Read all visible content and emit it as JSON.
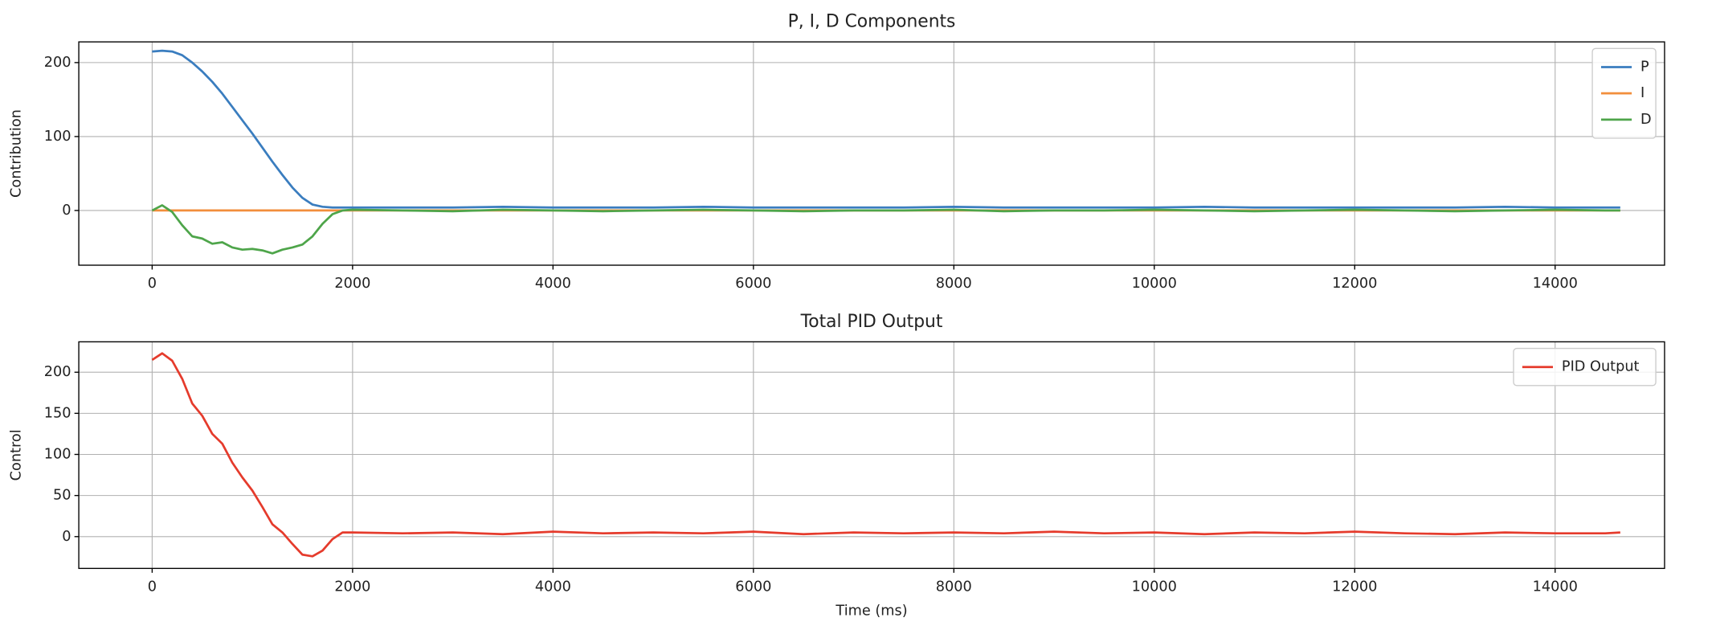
{
  "chart_data": [
    {
      "type": "line",
      "title": "P, I, D Components",
      "ylabel": "Contribution",
      "x": [
        0,
        100,
        200,
        300,
        400,
        500,
        600,
        700,
        800,
        900,
        1000,
        1100,
        1200,
        1300,
        1400,
        1500,
        1600,
        1700,
        1800,
        1900,
        2000,
        2500,
        3000,
        3500,
        4000,
        4500,
        5000,
        5500,
        6000,
        6500,
        7000,
        7500,
        8000,
        8500,
        9000,
        9500,
        10000,
        10500,
        11000,
        11500,
        12000,
        12500,
        13000,
        13500,
        14000,
        14500,
        14650
      ],
      "series": [
        {
          "name": "P",
          "color": "#3a7dbf",
          "values": [
            215,
            216,
            215,
            210,
            200,
            188,
            174,
            158,
            140,
            122,
            104,
            85,
            66,
            48,
            31,
            17,
            8,
            5,
            4,
            4,
            4,
            4,
            4,
            5,
            4,
            4,
            4,
            5,
            4,
            4,
            4,
            4,
            5,
            4,
            4,
            4,
            4,
            5,
            4,
            4,
            4,
            4,
            4,
            5,
            4,
            4,
            4
          ]
        },
        {
          "name": "I",
          "color": "#f28e3c",
          "values": [
            0,
            0,
            0,
            0,
            0,
            0,
            0,
            0,
            0,
            0,
            0,
            0,
            0,
            0,
            0,
            0,
            0,
            0,
            0,
            0,
            0,
            0,
            0,
            0,
            0,
            0,
            0,
            0,
            0,
            0,
            0,
            0,
            0,
            0,
            0,
            0,
            0,
            0,
            0,
            0,
            0,
            0,
            0,
            0,
            0,
            0,
            0
          ]
        },
        {
          "name": "D",
          "color": "#4ea54a",
          "values": [
            0,
            7,
            -2,
            -20,
            -35,
            -38,
            -45,
            -43,
            -50,
            -53,
            -52,
            -54,
            -58,
            -53,
            -50,
            -46,
            -35,
            -18,
            -5,
            0,
            1,
            0,
            -1,
            1,
            0,
            -1,
            0,
            1,
            0,
            -1,
            0,
            0,
            1,
            -1,
            0,
            0,
            1,
            0,
            -1,
            0,
            1,
            0,
            -1,
            0,
            1,
            0,
            0
          ]
        }
      ],
      "xlim": [
        -732,
        15092
      ],
      "ylim": [
        -74,
        228
      ],
      "xticks": [
        0,
        2000,
        4000,
        6000,
        8000,
        10000,
        12000,
        14000
      ],
      "yticks": [
        0,
        100,
        200
      ],
      "grid": true,
      "legend": "upper right"
    },
    {
      "type": "line",
      "title": "Total PID Output",
      "ylabel": "Control",
      "xlabel": "Time (ms)",
      "x": [
        0,
        100,
        200,
        300,
        400,
        500,
        600,
        700,
        800,
        900,
        1000,
        1100,
        1200,
        1300,
        1400,
        1500,
        1600,
        1700,
        1800,
        1900,
        2000,
        2500,
        3000,
        3500,
        4000,
        4500,
        5000,
        5500,
        6000,
        6500,
        7000,
        7500,
        8000,
        8500,
        9000,
        9500,
        10000,
        10500,
        11000,
        11500,
        12000,
        12500,
        13000,
        13500,
        14000,
        14500,
        14650
      ],
      "series": [
        {
          "name": "PID Output",
          "color": "#e53b2c",
          "values": [
            215,
            223,
            214,
            192,
            162,
            147,
            125,
            113,
            90,
            72,
            56,
            36,
            15,
            5,
            -9,
            -22,
            -24,
            -17,
            -3,
            5,
            5,
            4,
            5,
            3,
            6,
            4,
            5,
            4,
            6,
            3,
            5,
            4,
            5,
            4,
            6,
            4,
            5,
            3,
            5,
            4,
            6,
            4,
            3,
            5,
            4,
            4,
            5
          ]
        }
      ],
      "xlim": [
        -732,
        15092
      ],
      "ylim": [
        -38.7,
        237
      ],
      "xticks": [
        0,
        2000,
        4000,
        6000,
        8000,
        10000,
        12000,
        14000
      ],
      "yticks": [
        0,
        50,
        100,
        150,
        200
      ],
      "grid": true,
      "legend": "upper right"
    }
  ]
}
